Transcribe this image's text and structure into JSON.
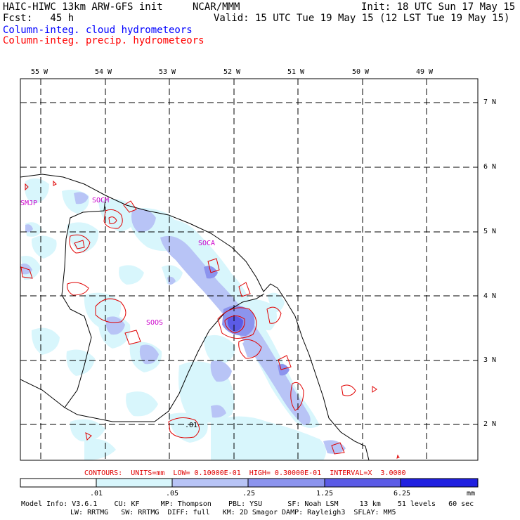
{
  "header": {
    "model_line": "HAIC-HIWC 13km ARW-GFS init",
    "org": "NCAR/MMM",
    "init": "Init: 18 UTC Sun 17 May 15",
    "fcst": "Fcst:   45 h",
    "valid": "Valid: 15 UTC Tue 19 May 15 (12 LST Tue 19 May 15)",
    "legend_cloud": "Column-integ. cloud hydrometeors",
    "legend_precip": "Column-integ. precip. hydrometeors"
  },
  "colors": {
    "cloud_legend": "#0000ff",
    "precip_legend": "#ff0000",
    "contour": "#e00000",
    "station": "#cc00cc",
    "shade_01": "#d8f6fc",
    "shade_05": "#b8c4f6",
    "shade_25": "#8c94ee",
    "shade_125": "#5b5be6",
    "shade_625": "#2020e0"
  },
  "map": {
    "lon_labels": [
      "55 W",
      "54 W",
      "53 W",
      "52 W",
      "51 W",
      "50 W",
      "49 W"
    ],
    "lat_labels": [
      "7 N",
      "6 N",
      "5 N",
      "4 N",
      "3 N",
      "2 N"
    ],
    "stations": [
      "SMJP",
      "SOCM",
      "SOCA",
      "SOOS"
    ],
    "contour_label": ".01"
  },
  "contours_note": "CONTOURS:  UNITS=mm  LOW= 0.10000E-01  HIGH= 0.30000E-01  INTERVAL=X  3.0000",
  "colorbar": {
    "ticks": [
      ".01",
      ".05",
      ".25",
      "1.25",
      "6.25"
    ],
    "units": "mm"
  },
  "model_info": {
    "line1": "Model Info: V3.6.1    CU: KF     MP: Thompson    PBL: YSU      SF: Noah LSM     13 km    51 levels   60 sec",
    "line2": "LW: RRTMG   SW: RRTMG  DIFF: full   KM: 2D Smagor DAMP: Rayleigh3  SFLAY: MM5"
  }
}
